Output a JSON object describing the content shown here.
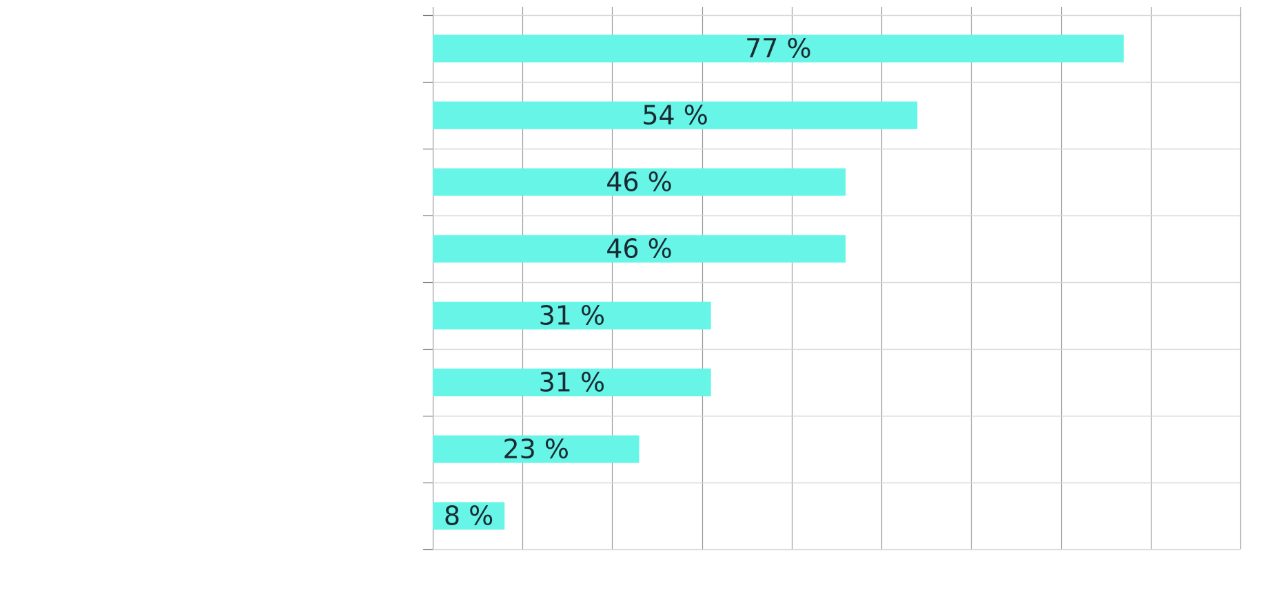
{
  "chart_data": {
    "type": "bar",
    "orientation": "horizontal",
    "categories": [
      "",
      "",
      "",
      "",
      "",
      "",
      "",
      ""
    ],
    "values": [
      77,
      54,
      46,
      46,
      31,
      31,
      23,
      8
    ],
    "labels": [
      "77 %",
      "54 %",
      "46 %",
      "46 %",
      "31 %",
      "31 %",
      "23 %",
      "8 %"
    ],
    "xlim": [
      0,
      90
    ],
    "x_grid_step": 10,
    "grid": true,
    "bar_color": "#66f5e6",
    "title": "",
    "xlabel": "",
    "ylabel": ""
  }
}
